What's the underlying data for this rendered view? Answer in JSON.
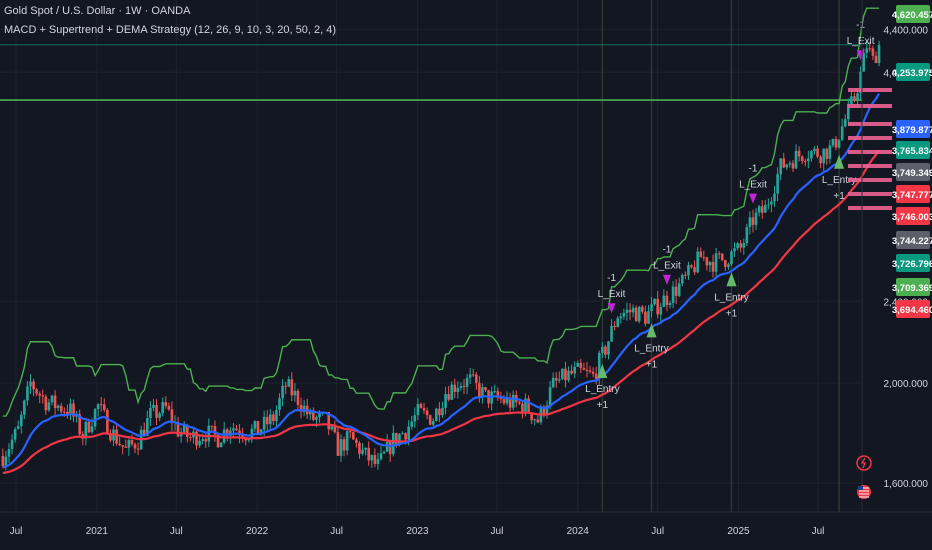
{
  "header": {
    "symbol": "Gold Spot / U.S. Dollar · 1W · OANDA",
    "strategy": "MACD + Supertrend + DEMA Strategy (12, 26, 9, 10, 3, 20, 50, 2, 4)"
  },
  "colors": {
    "background": "#131722",
    "grid": "#1e222d",
    "up_candle": "#26a69a",
    "down_candle": "#ef5350",
    "dema_fast": "#2962ff",
    "dema_slow": "#f23645",
    "supertrend": "#4caf50",
    "horizontal_line": "#4caf50",
    "entry_arrow": "#66bb6a",
    "exit_arrow": "#c026d3",
    "text": "#d1d4dc"
  },
  "chart_data": {
    "type": "candlestick",
    "title": "Gold Spot / U.S. Dollar · 1W · OANDA",
    "x_axis": {
      "ticks": [
        "Jul",
        "2021",
        "Jul",
        "2022",
        "Jul",
        "2023",
        "Jul",
        "2024",
        "Jul",
        "2025",
        "Jul"
      ],
      "tick_dates": [
        "2020-07",
        "2021-01",
        "2021-07",
        "2022-01",
        "2022-07",
        "2023-01",
        "2023-07",
        "2024-01",
        "2024-07",
        "2025-01",
        "2025-07"
      ]
    },
    "y_axis": {
      "scale": "log",
      "range": [
        1500,
        4700
      ],
      "ticks": [
        "4,400.000",
        "4,000.000",
        "2,400.000",
        "2,000.000",
        "1,600.000"
      ],
      "tick_values": [
        4400,
        4000,
        2400,
        2000,
        1600
      ]
    },
    "price_labels": [
      {
        "text": "4,620.457",
        "value": 4620.457,
        "color": "#4caf50"
      },
      {
        "text": "4,253.975",
        "value": 4253.975,
        "color": "#089981"
      },
      {
        "text": "3,879.877",
        "value": 3879.877,
        "color": "#2962ff"
      },
      {
        "text": "3,765.834",
        "value": 3765.834,
        "color": "#089981"
      },
      {
        "text": "3,749.349",
        "value": 3749.349,
        "color": "#5d606b"
      },
      {
        "text": "3,747.777",
        "value": 3747.777,
        "color": "#f23645"
      },
      {
        "text": "3,746.003",
        "value": 3746.003,
        "color": "#f23645"
      },
      {
        "text": "3,744.227",
        "value": 3744.227,
        "color": "#5d606b"
      },
      {
        "text": "3,726.796",
        "value": 3726.796,
        "color": "#089981"
      },
      {
        "text": "3,709.369",
        "value": 3709.369,
        "color": "#4caf50"
      },
      {
        "text": "3,694.460",
        "value": 3694.46,
        "color": "#f23645"
      }
    ],
    "horizontal_lines": [
      {
        "value": 3760,
        "color": "#4caf50"
      },
      {
        "value": 4253.975,
        "color": "#089981"
      }
    ],
    "trades": [
      {
        "entry_date": "2024-02-26",
        "entry_label": "L_Entry",
        "entry_qty": "+1",
        "exit_date": "2024-03-18",
        "exit_label": "L_Exit",
        "exit_qty": "-1"
      },
      {
        "entry_date": "2024-06-17",
        "entry_label": "L_Entry",
        "entry_qty": "+1",
        "exit_date": "2024-07-22",
        "exit_label": "L_Exit",
        "exit_qty": "-1"
      },
      {
        "entry_date": "2024-12-16",
        "entry_label": "L_Entry",
        "entry_qty": "+1",
        "exit_date": "2025-02-03",
        "exit_label": "L_Exit",
        "exit_qty": "-1"
      },
      {
        "entry_date": "2025-08-18",
        "entry_label": "L_Entry",
        "entry_qty": "+1",
        "exit_date": "2025-10-06",
        "exit_label": "L_Exit",
        "exit_qty": "-1"
      }
    ],
    "price_path": [
      [
        "2020-06-01",
        1700
      ],
      [
        "2020-07-06",
        1800
      ],
      [
        "2020-08-03",
        2000
      ],
      [
        "2020-09-07",
        1920
      ],
      [
        "2020-10-05",
        1900
      ],
      [
        "2020-11-02",
        1880
      ],
      [
        "2020-11-30",
        1780
      ],
      [
        "2021-01-04",
        1900
      ],
      [
        "2021-02-01",
        1800
      ],
      [
        "2021-03-08",
        1720
      ],
      [
        "2021-04-05",
        1760
      ],
      [
        "2021-05-03",
        1860
      ],
      [
        "2021-06-07",
        1890
      ],
      [
        "2021-07-05",
        1800
      ],
      [
        "2021-08-02",
        1770
      ],
      [
        "2021-09-06",
        1790
      ],
      [
        "2021-10-04",
        1770
      ],
      [
        "2021-11-01",
        1820
      ],
      [
        "2021-12-06",
        1790
      ],
      [
        "2022-01-03",
        1800
      ],
      [
        "2022-02-07",
        1850
      ],
      [
        "2022-03-07",
        1990
      ],
      [
        "2022-04-04",
        1930
      ],
      [
        "2022-05-02",
        1850
      ],
      [
        "2022-06-06",
        1840
      ],
      [
        "2022-07-04",
        1730
      ],
      [
        "2022-08-01",
        1770
      ],
      [
        "2022-09-05",
        1700
      ],
      [
        "2022-10-03",
        1660
      ],
      [
        "2022-11-07",
        1760
      ],
      [
        "2022-12-05",
        1800
      ],
      [
        "2023-01-02",
        1870
      ],
      [
        "2023-02-06",
        1850
      ],
      [
        "2023-03-06",
        1960
      ],
      [
        "2023-04-03",
        2000
      ],
      [
        "2023-05-01",
        2010
      ],
      [
        "2023-06-05",
        1940
      ],
      [
        "2023-07-03",
        1930
      ],
      [
        "2023-08-07",
        1910
      ],
      [
        "2023-09-04",
        1900
      ],
      [
        "2023-10-02",
        1840
      ],
      [
        "2023-11-06",
        1990
      ],
      [
        "2023-12-04",
        2030
      ],
      [
        "2024-01-01",
        2050
      ],
      [
        "2024-02-05",
        2030
      ],
      [
        "2024-03-04",
        2160
      ],
      [
        "2024-04-01",
        2330
      ],
      [
        "2024-05-06",
        2350
      ],
      [
        "2024-06-03",
        2320
      ],
      [
        "2024-07-01",
        2380
      ],
      [
        "2024-08-05",
        2450
      ],
      [
        "2024-09-02",
        2520
      ],
      [
        "2024-10-07",
        2650
      ],
      [
        "2024-11-04",
        2620
      ],
      [
        "2024-12-02",
        2640
      ],
      [
        "2025-01-06",
        2700
      ],
      [
        "2025-02-03",
        2880
      ],
      [
        "2025-03-03",
        2950
      ],
      [
        "2025-04-07",
        3240
      ],
      [
        "2025-05-05",
        3300
      ],
      [
        "2025-06-02",
        3350
      ],
      [
        "2025-07-07",
        3340
      ],
      [
        "2025-08-04",
        3380
      ],
      [
        "2025-09-01",
        3600
      ],
      [
        "2025-09-22",
        3780
      ],
      [
        "2025-10-06",
        3980
      ],
      [
        "2025-10-20",
        4250
      ],
      [
        "2025-11-03",
        4100
      ],
      [
        "2025-11-17",
        4250
      ]
    ]
  }
}
